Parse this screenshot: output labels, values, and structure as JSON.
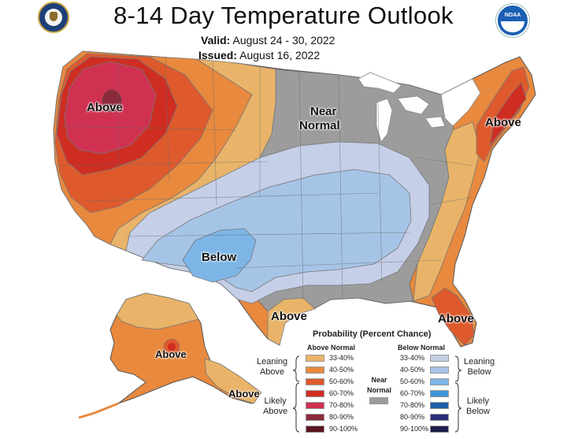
{
  "title": "8-14 Day Temperature Outlook",
  "valid_label": "Valid:",
  "valid_dates": "August 24 - 30, 2022",
  "issued_label": "Issued:",
  "issued_date": "August 16, 2022",
  "icons": {
    "left_logo": "commerce-seal-icon",
    "right_logo": "noaa-logo-icon"
  },
  "map_labels": {
    "above_west": "Above",
    "near_normal_line1": "Near",
    "near_normal_line2": "Normal",
    "above_northeast": "Above",
    "below_southwest": "Below",
    "above_texas": "Above",
    "above_florida": "Above",
    "above_alaska": "Above",
    "above_alaska_se": "Above"
  },
  "legend": {
    "title": "Probability (Percent Chance)",
    "above_header": "Above Normal",
    "below_header": "Below Normal",
    "near_label_line1": "Near",
    "near_label_line2": "Normal",
    "leaning_above_line1": "Leaning",
    "leaning_above_line2": "Above",
    "likely_above_line1": "Likely",
    "likely_above_line2": "Above",
    "leaning_below_line1": "Leaning",
    "leaning_below_line2": "Below",
    "likely_below_line1": "Likely",
    "likely_below_line2": "Below",
    "above": [
      {
        "range": "33-40%",
        "color": "#e9b469"
      },
      {
        "range": "40-50%",
        "color": "#e8893e"
      },
      {
        "range": "50-60%",
        "color": "#de5a2c"
      },
      {
        "range": "60-70%",
        "color": "#cf2d22"
      },
      {
        "range": "70-80%",
        "color": "#d03151"
      },
      {
        "range": "80-90%",
        "color": "#8b2a3a"
      },
      {
        "range": "90-100%",
        "color": "#5a1420"
      }
    ],
    "below": [
      {
        "range": "33-40%",
        "color": "#c5cfe8"
      },
      {
        "range": "40-50%",
        "color": "#a6c4e6"
      },
      {
        "range": "50-60%",
        "color": "#7db6e6"
      },
      {
        "range": "60-70%",
        "color": "#3d94d8"
      },
      {
        "range": "70-80%",
        "color": "#1d5fa8"
      },
      {
        "range": "80-90%",
        "color": "#2b2f7a"
      },
      {
        "range": "90-100%",
        "color": "#1c1f4a"
      }
    ],
    "near_color": "#9c9c9c"
  }
}
